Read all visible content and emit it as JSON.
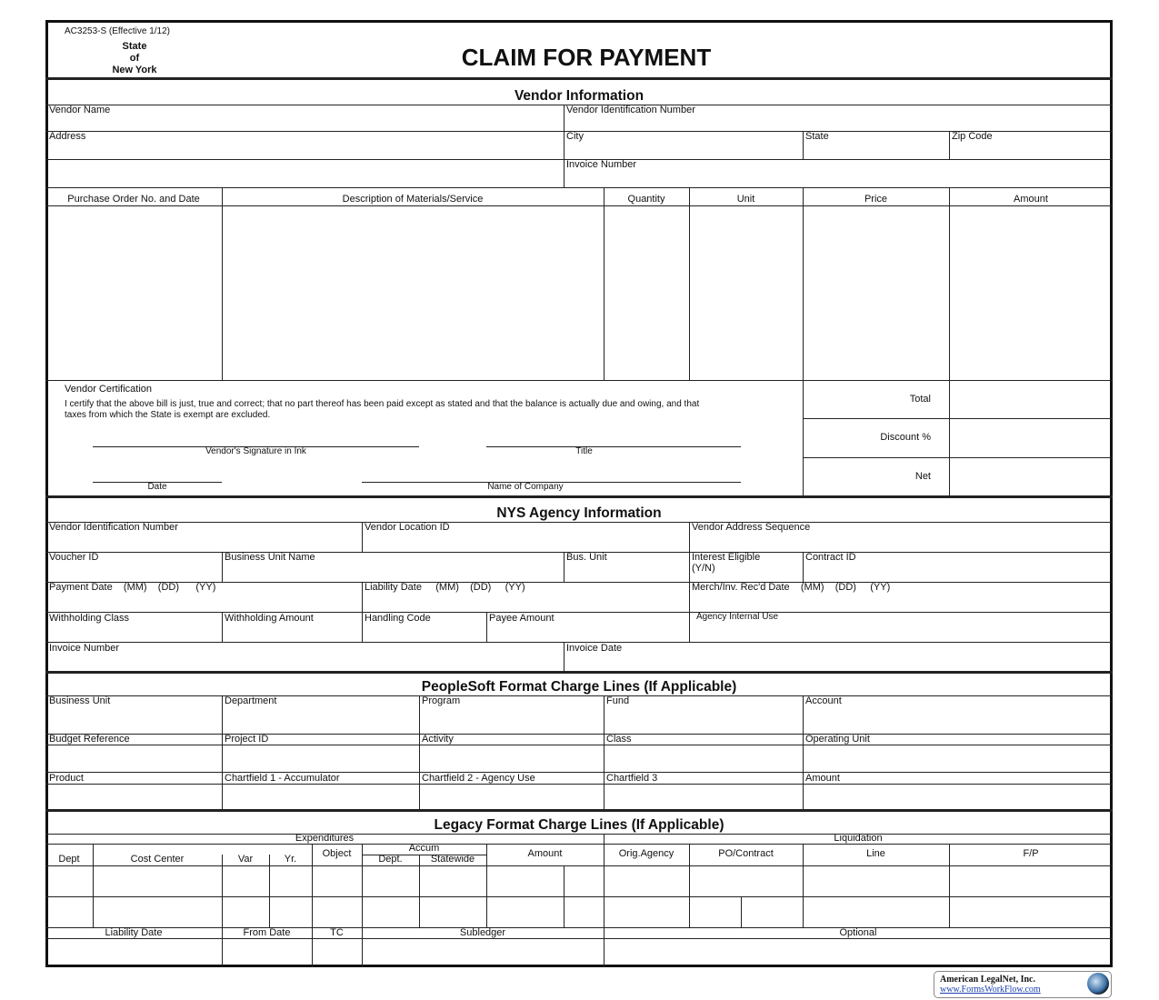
{
  "header": {
    "form_code": "AC3253-S  (Effective 1/12)",
    "state_lines": [
      "State",
      "of",
      "New York"
    ],
    "title": "CLAIM FOR PAYMENT"
  },
  "vendor_info": {
    "title": "Vendor Information",
    "vendor_name": "Vendor Name",
    "vendor_id": "Vendor Identification Number",
    "address": "Address",
    "city": "City",
    "state": "State",
    "zip": "Zip Code",
    "invoice_number": "Invoice Number"
  },
  "line_items": {
    "columns": [
      "Purchase Order No. and Date",
      "Description of Materials/Service",
      "Quantity",
      "Unit",
      "Price",
      "Amount"
    ]
  },
  "certification": {
    "heading": "Vendor Certification",
    "text": "I certify that the above bill is just, true and correct; that no part thereof has been paid except as stated and that the balance is actually due and owing, and that taxes from which the State is exempt are excluded.",
    "signature": "Vendor's Signature in Ink",
    "title": "Title",
    "date": "Date",
    "company": "Name of Company"
  },
  "totals": {
    "total": "Total",
    "discount": "Discount %",
    "net": "Net"
  },
  "agency_info": {
    "title": "NYS Agency Information",
    "vendor_id": "Vendor Identification Number",
    "vendor_location": "Vendor Location ID",
    "vendor_address_seq": "Vendor Address Sequence",
    "voucher_id": "Voucher ID",
    "business_unit_name": "Business Unit Name",
    "bus_unit": "Bus. Unit",
    "interest_eligible": "Interest Eligible",
    "interest_yn": "(Y/N)",
    "contract_id": "Contract ID",
    "payment_date": "Payment Date    (MM)    (DD)      (YY)",
    "liability_date": "Liability Date     (MM)    (DD)     (YY)",
    "merch_date": "Merch/Inv. Rec'd Date    (MM)    (DD)     (YY)",
    "withholding_class": "Withholding Class",
    "withholding_amount": "Withholding Amount",
    "handling_code": "Handling Code",
    "payee_amount": "Payee Amount",
    "agency_internal": "Agency Internal Use",
    "invoice_number": "Invoice Number",
    "invoice_date": "Invoice Date"
  },
  "peoplesoft": {
    "title": "PeopleSoft Format Charge Lines (If Applicable)",
    "rows": [
      [
        "Business Unit",
        "Department",
        "Program",
        "Fund",
        "Account"
      ],
      [
        "Budget Reference",
        "Project ID",
        "Activity",
        "Class",
        "Operating Unit"
      ],
      [
        "Product",
        "Chartfield 1 - Accumulator",
        "Chartfield 2 - Agency Use",
        "Chartfield 3",
        "Amount"
      ]
    ]
  },
  "legacy": {
    "title": "Legacy Format Charge Lines (If Applicable)",
    "expenditures": "Expenditures",
    "liquidation": "Liquidation",
    "dept": "Dept",
    "cost_center": "Cost Center",
    "var": "Var",
    "yr": "Yr.",
    "object": "Object",
    "accum": "Accum",
    "accum_dept": "Dept.",
    "statewide": "Statewide",
    "amount": "Amount",
    "orig_agency": "Orig.Agency",
    "po_contract": "PO/Contract",
    "line": "Line",
    "fp": "F/P",
    "liability_date": "Liability Date",
    "from_date": "From Date",
    "tc": "TC",
    "subledger": "Subledger",
    "optional": "Optional"
  },
  "footer": {
    "company": "American LegalNet, Inc.",
    "url": "www.FormsWorkFlow.com"
  }
}
